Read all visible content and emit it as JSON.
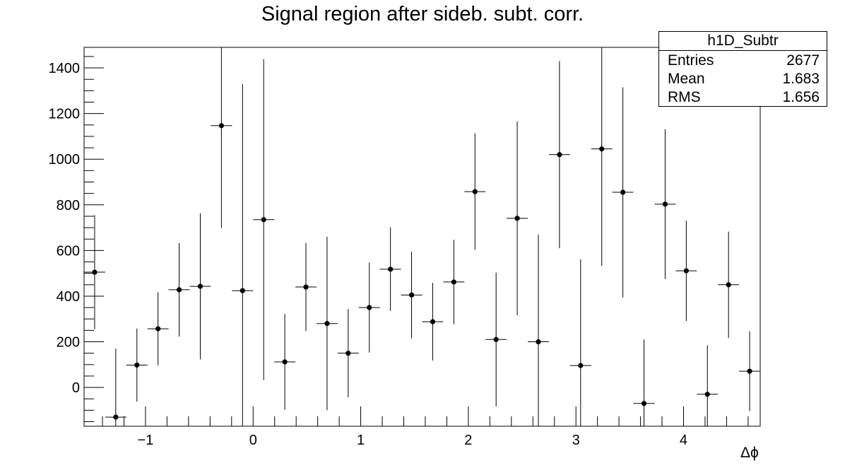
{
  "chart_data": {
    "type": "scatter",
    "title": "Signal region after sideb. subt. corr.",
    "xlabel": "Δϕ",
    "ylabel": "",
    "xlim": [
      -1.5708,
      4.7124
    ],
    "ylim": [
      -170,
      1490
    ],
    "x_ticks": [
      -1,
      0,
      1,
      2,
      3,
      4
    ],
    "x_tick_labels": [
      "−1",
      "0",
      "1",
      "2",
      "3",
      "4"
    ],
    "y_ticks": [
      0,
      200,
      400,
      600,
      800,
      1000,
      1200,
      1400
    ],
    "y_tick_labels": [
      "0",
      "200",
      "400",
      "600",
      "800",
      "1000",
      "1200",
      "1400"
    ],
    "bins": 32,
    "grid": false,
    "series": [
      {
        "x": [
          -1.4726,
          -1.2763,
          -1.0799,
          -0.8836,
          -0.6872,
          -0.4909,
          -0.2945,
          -0.0982,
          0.0982,
          0.2945,
          0.4909,
          0.6872,
          0.8836,
          1.0799,
          1.2763,
          1.4726,
          1.669,
          1.8653,
          2.0617,
          2.258,
          2.4544,
          2.6507,
          2.8471,
          3.0434,
          3.2398,
          3.4361,
          3.6325,
          3.8288,
          4.0252,
          4.2215,
          4.4179,
          4.6142
        ],
        "y": [
          505,
          -130,
          98,
          257,
          428,
          443,
          1147,
          424,
          735,
          112,
          440,
          280,
          150,
          350,
          518,
          405,
          288,
          462,
          858,
          210,
          741,
          200,
          1020,
          96,
          1045,
          855,
          -70,
          803,
          511,
          -30,
          450,
          71
        ],
        "yerr": [
          250,
          300,
          160,
          160,
          205,
          320,
          448,
          905,
          703,
          210,
          193,
          380,
          193,
          197,
          183,
          190,
          170,
          185,
          255,
          293,
          425,
          470,
          410,
          465,
          512,
          460,
          280,
          328,
          220,
          215,
          233,
          175
        ]
      }
    ]
  },
  "stats_box": {
    "name": "h1D_Subtr",
    "rows": [
      {
        "label": "Entries",
        "value": "2677"
      },
      {
        "label": "Mean",
        "value": "1.683"
      },
      {
        "label": "RMS",
        "value": "1.656"
      }
    ]
  }
}
